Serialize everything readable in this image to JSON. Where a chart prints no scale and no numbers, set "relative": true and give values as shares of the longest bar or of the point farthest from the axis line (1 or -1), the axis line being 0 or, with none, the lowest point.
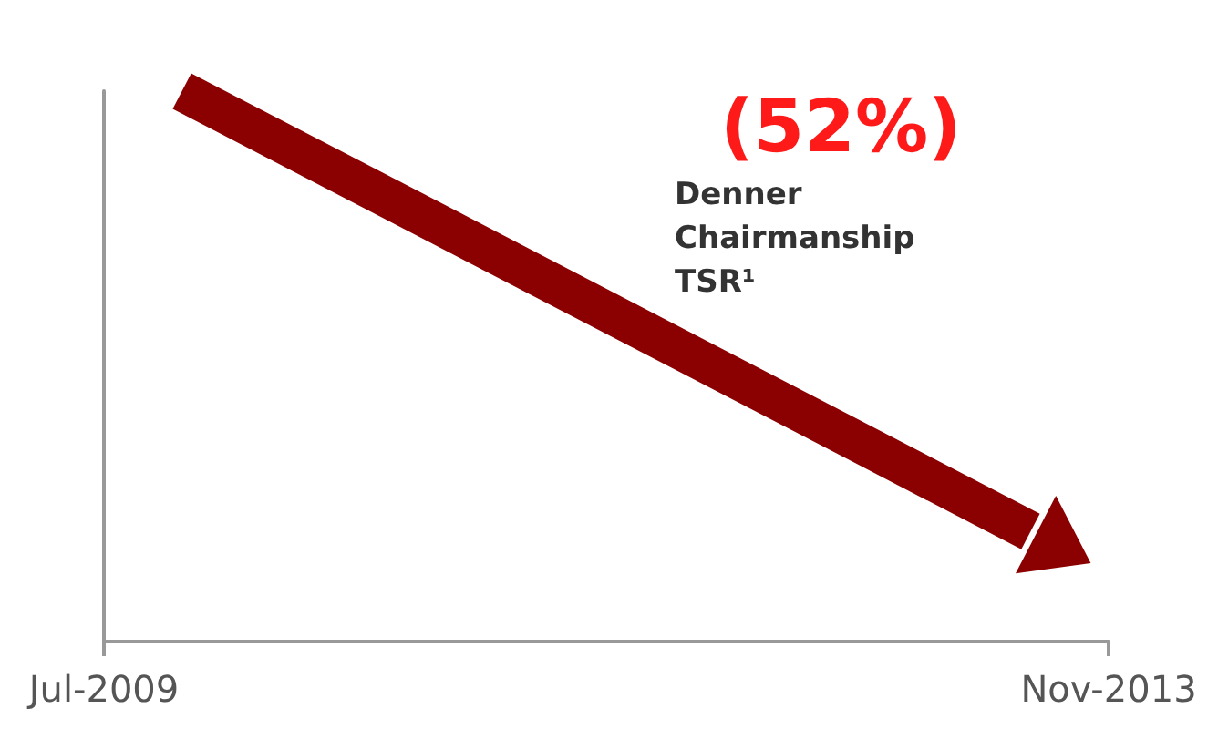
{
  "chart_data": {
    "type": "line",
    "relative": true,
    "x": [
      "2009-11",
      "2013-07"
    ],
    "series": [
      {
        "color": "#8b0000",
        "values": [
          1,
          0.2
        ]
      }
    ],
    "xlim": [
      "2009-07",
      "2013-11"
    ],
    "xticks": [
      {
        "value": "2009-07",
        "label": "Jul-2009"
      },
      {
        "value": "2013-11",
        "label": "Nov-2013"
      }
    ],
    "annotations": [
      "(52%)",
      "Denner Chairmanship TSR¹"
    ],
    "grid": false
  }
}
